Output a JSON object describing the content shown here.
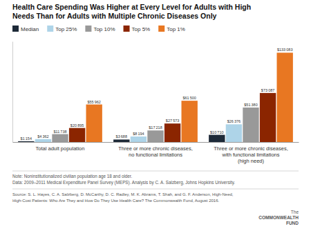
{
  "chart_data": {
    "type": "bar",
    "title": "Health Care Spending Was Higher at Every Level for Adults with High\nNeeds Than for Adults with Multiple Chronic Diseases Only",
    "categories": [
      "Total adult population",
      "Three or more chronic diseases,\nno functional limitations",
      "Three or more chronic diseases,\nwith functional limitations\n(high need)"
    ],
    "series": [
      {
        "name": "Median",
        "color": "#1e2a38",
        "values": [
          1154,
          3688,
          10710
        ],
        "value_labels": [
          "$1 154",
          "$3 688",
          "$10 710"
        ]
      },
      {
        "name": "Top 25%",
        "color": "#aed4e8",
        "values": [
          4362,
          8194,
          26376
        ],
        "value_labels": [
          "$4 362",
          "$8 194",
          "$26 376"
        ]
      },
      {
        "name": "Top 10%",
        "color": "#999999",
        "values": [
          11738,
          17218,
          51380
        ],
        "value_labels": [
          "$11 738",
          "$17 218",
          "$51 380"
        ]
      },
      {
        "name": "Top 5%",
        "color": "#8b2500",
        "values": [
          20895,
          27573,
          73087
        ],
        "value_labels": [
          "$20 895",
          "$27 573",
          "$73 087"
        ]
      },
      {
        "name": "Top 1%",
        "color": "#e87722",
        "values": [
          55962,
          61500,
          133083
        ],
        "value_labels": [
          "$55 962",
          "$61 500",
          "$133 083"
        ]
      }
    ],
    "ylim": [
      0,
      150000
    ],
    "tick_labels": "x",
    "data_labels": true,
    "grid": false,
    "legend": "top",
    "annotations": [
      "Note: Noninstitutionalized civilian population age 18 and older.",
      "Data: 2009–2011 Medical Expenditure Panel Survey (MEPS). Analysis by C. A. Salzberg, Johns Hopkins University.",
      "Source: S. L. Hayes, C. A. Salzberg, D. McCarthy, D. C. Radley, M. K. Abrams, T. Shah, and G. F. Anderson, High-Need,",
      "High-Cost Patients: Who Are They and How Do They Use Health Care? The Commonwealth Fund, August 2016.",
      "The",
      "COMMONWEALTH",
      "FUND"
    ]
  }
}
